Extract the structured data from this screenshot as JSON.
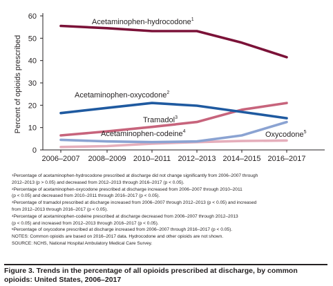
{
  "chart_data": {
    "type": "line",
    "categories": [
      "2006–2007",
      "2008–2009",
      "2010–2011",
      "2012–2013",
      "2014–2015",
      "2016–2017"
    ],
    "ylabel": "Percent of opioids prescribed",
    "xlabel": "",
    "ylim": [
      0,
      60
    ],
    "yticks": [
      0,
      10,
      20,
      30,
      40,
      50,
      60
    ],
    "grid": false,
    "legend": "direct labels on lines",
    "series": [
      {
        "name": "Acetaminophen-hydrocodone",
        "footnote": "1",
        "color": "#7b1238",
        "values": [
          55.5,
          54.5,
          53.2,
          53.2,
          48.0,
          41.5
        ]
      },
      {
        "name": "Acetaminophen-oxycodone",
        "footnote": "2",
        "color": "#1f5aa0",
        "values": [
          16.5,
          18.8,
          21.0,
          19.8,
          17.0,
          14.2
        ]
      },
      {
        "name": "Tramadol",
        "footnote": "3",
        "color": "#c7647c",
        "values": [
          6.5,
          8.3,
          10.3,
          12.5,
          18.0,
          21.0
        ]
      },
      {
        "name": "Acetaminophen-codeine",
        "footnote": "4",
        "color": "#8ba3d2",
        "values": [
          4.5,
          3.8,
          3.5,
          3.8,
          6.5,
          12.5
        ]
      },
      {
        "name": "Oxycodone",
        "footnote": "5",
        "color": "#e5aebb",
        "values": [
          1.3,
          1.7,
          2.8,
          3.5,
          4.0,
          4.2
        ]
      }
    ]
  },
  "notes": [
    {
      "sup": "1",
      "lines": [
        "Percentage of acetaminophen-hydrocodone prescribed at discharge did not change significantly from 2006–2007 through",
        "2012–2013 (p > 0.05) and decreased from 2012–2013 through 2016–2017 (p < 0.05)."
      ]
    },
    {
      "sup": "2",
      "lines": [
        "Percentage of acetaminophen-oxycodone prescribed at discharge increased from 2006–2007 through 2010–2011",
        "(p < 0.05) and decreased from 2010–2011 through 2016–2017 (p < 0.05)."
      ]
    },
    {
      "sup": "3",
      "lines": [
        "Percentage of tramadol prescribed at discharge increased from 2006–2007 through 2012–2013 (p < 0.05) and increased",
        "from 2012–2013 through 2016–2017 (p < 0.05)."
      ]
    },
    {
      "sup": "4",
      "lines": [
        "Percentage of acetaminophen-codeine prescribed at discharge decreased from 2006–2007 through 2012–2013",
        "(p < 0.05) and increased from 2012–2013 through 2016–2017 (p < 0.05)."
      ]
    },
    {
      "sup": "5",
      "lines": [
        "Percentage of oxycodone prescribed at discharge increased from 2006–2007 through 2016–2017 (p < 0.05)."
      ]
    },
    {
      "sup": "",
      "lines": [
        "NOTES: Common opioids are based on 2016–2017 data. Hydrocodone and other opioids are not shown."
      ]
    },
    {
      "sup": "",
      "lines": [
        "SOURCE: NCHS, National Hospital Ambulatory Medical Care Survey."
      ]
    }
  ],
  "caption": "Figure 3. Trends in the percentage of all opioids prescribed at discharge, by common opioids: United States, 2006–2017"
}
